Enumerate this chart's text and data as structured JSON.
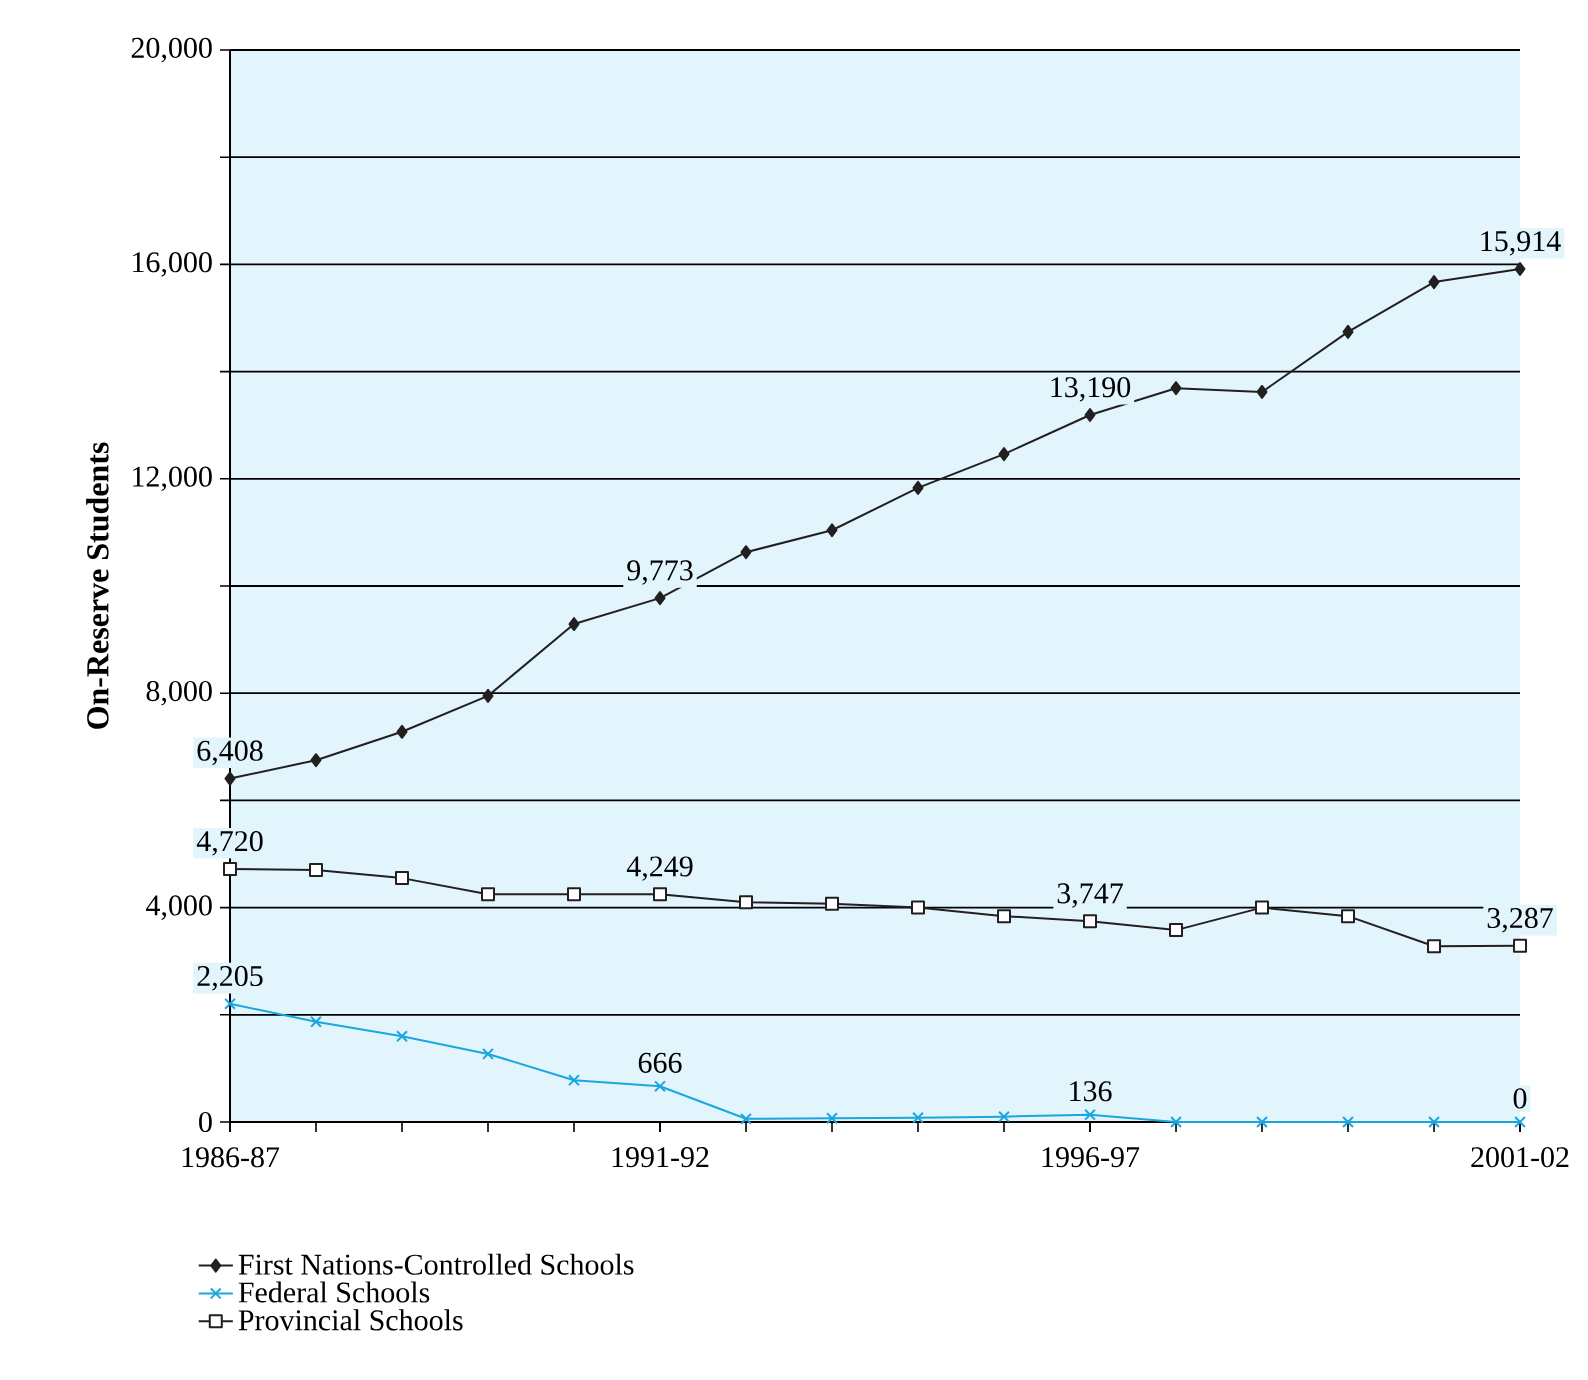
{
  "chart_data": {
    "type": "line",
    "ylabel": "On-Reserve Students",
    "categories": [
      "1986-87",
      null,
      null,
      null,
      null,
      "1991-92",
      null,
      null,
      null,
      null,
      "1996-97",
      null,
      null,
      null,
      null,
      "2001-02"
    ],
    "series": [
      {
        "name": "First Nations-Controlled Schools",
        "color": "#231f20",
        "marker": "diamond",
        "values": [
          6408,
          6750,
          7280,
          7950,
          9290,
          9773,
          10630,
          11040,
          11830,
          12460,
          13190,
          13690,
          13620,
          14740,
          15670,
          15914
        ],
        "value_labels": [
          "6,408",
          null,
          null,
          null,
          null,
          "9,773",
          null,
          null,
          null,
          null,
          "13,190",
          null,
          null,
          null,
          null,
          "15,914"
        ]
      },
      {
        "name": "Federal Schools",
        "color": "#1aa7e0",
        "marker": "cross",
        "values": [
          2205,
          1870,
          1600,
          1270,
          780,
          666,
          60,
          70,
          80,
          100,
          136,
          0,
          0,
          0,
          0,
          0
        ],
        "value_labels": [
          "2,205",
          null,
          null,
          null,
          null,
          "666",
          null,
          null,
          null,
          null,
          "136",
          null,
          null,
          null,
          null,
          "0"
        ]
      },
      {
        "name": "Provincial Schools",
        "color": "#231f20",
        "marker": "square",
        "values": [
          4720,
          4700,
          4550,
          4250,
          4249,
          4249,
          4100,
          4070,
          4000,
          3840,
          3747,
          3580,
          4000,
          3840,
          3280,
          3287
        ],
        "value_labels": [
          "4,720",
          null,
          null,
          null,
          null,
          "4,249",
          null,
          null,
          null,
          null,
          "3,747",
          null,
          null,
          null,
          null,
          "3,287"
        ]
      }
    ],
    "ylim": [
      0,
      20000
    ],
    "yticks": [
      0,
      {
        "value": 2000,
        "label": null
      },
      {
        "value": 4000,
        "label": "4,000"
      },
      {
        "value": 6000,
        "label": null
      },
      {
        "value": 8000,
        "label": "8,000"
      },
      {
        "value": 10000,
        "label": null
      },
      {
        "value": 12000,
        "label": "12,000"
      },
      {
        "value": 14000,
        "label": null
      },
      {
        "value": 16000,
        "label": "16,000"
      },
      {
        "value": 18000,
        "label": null
      },
      {
        "value": 20000,
        "label": "20,000"
      }
    ],
    "grid": "y",
    "legend": "bottom left",
    "line_style": "solid"
  }
}
